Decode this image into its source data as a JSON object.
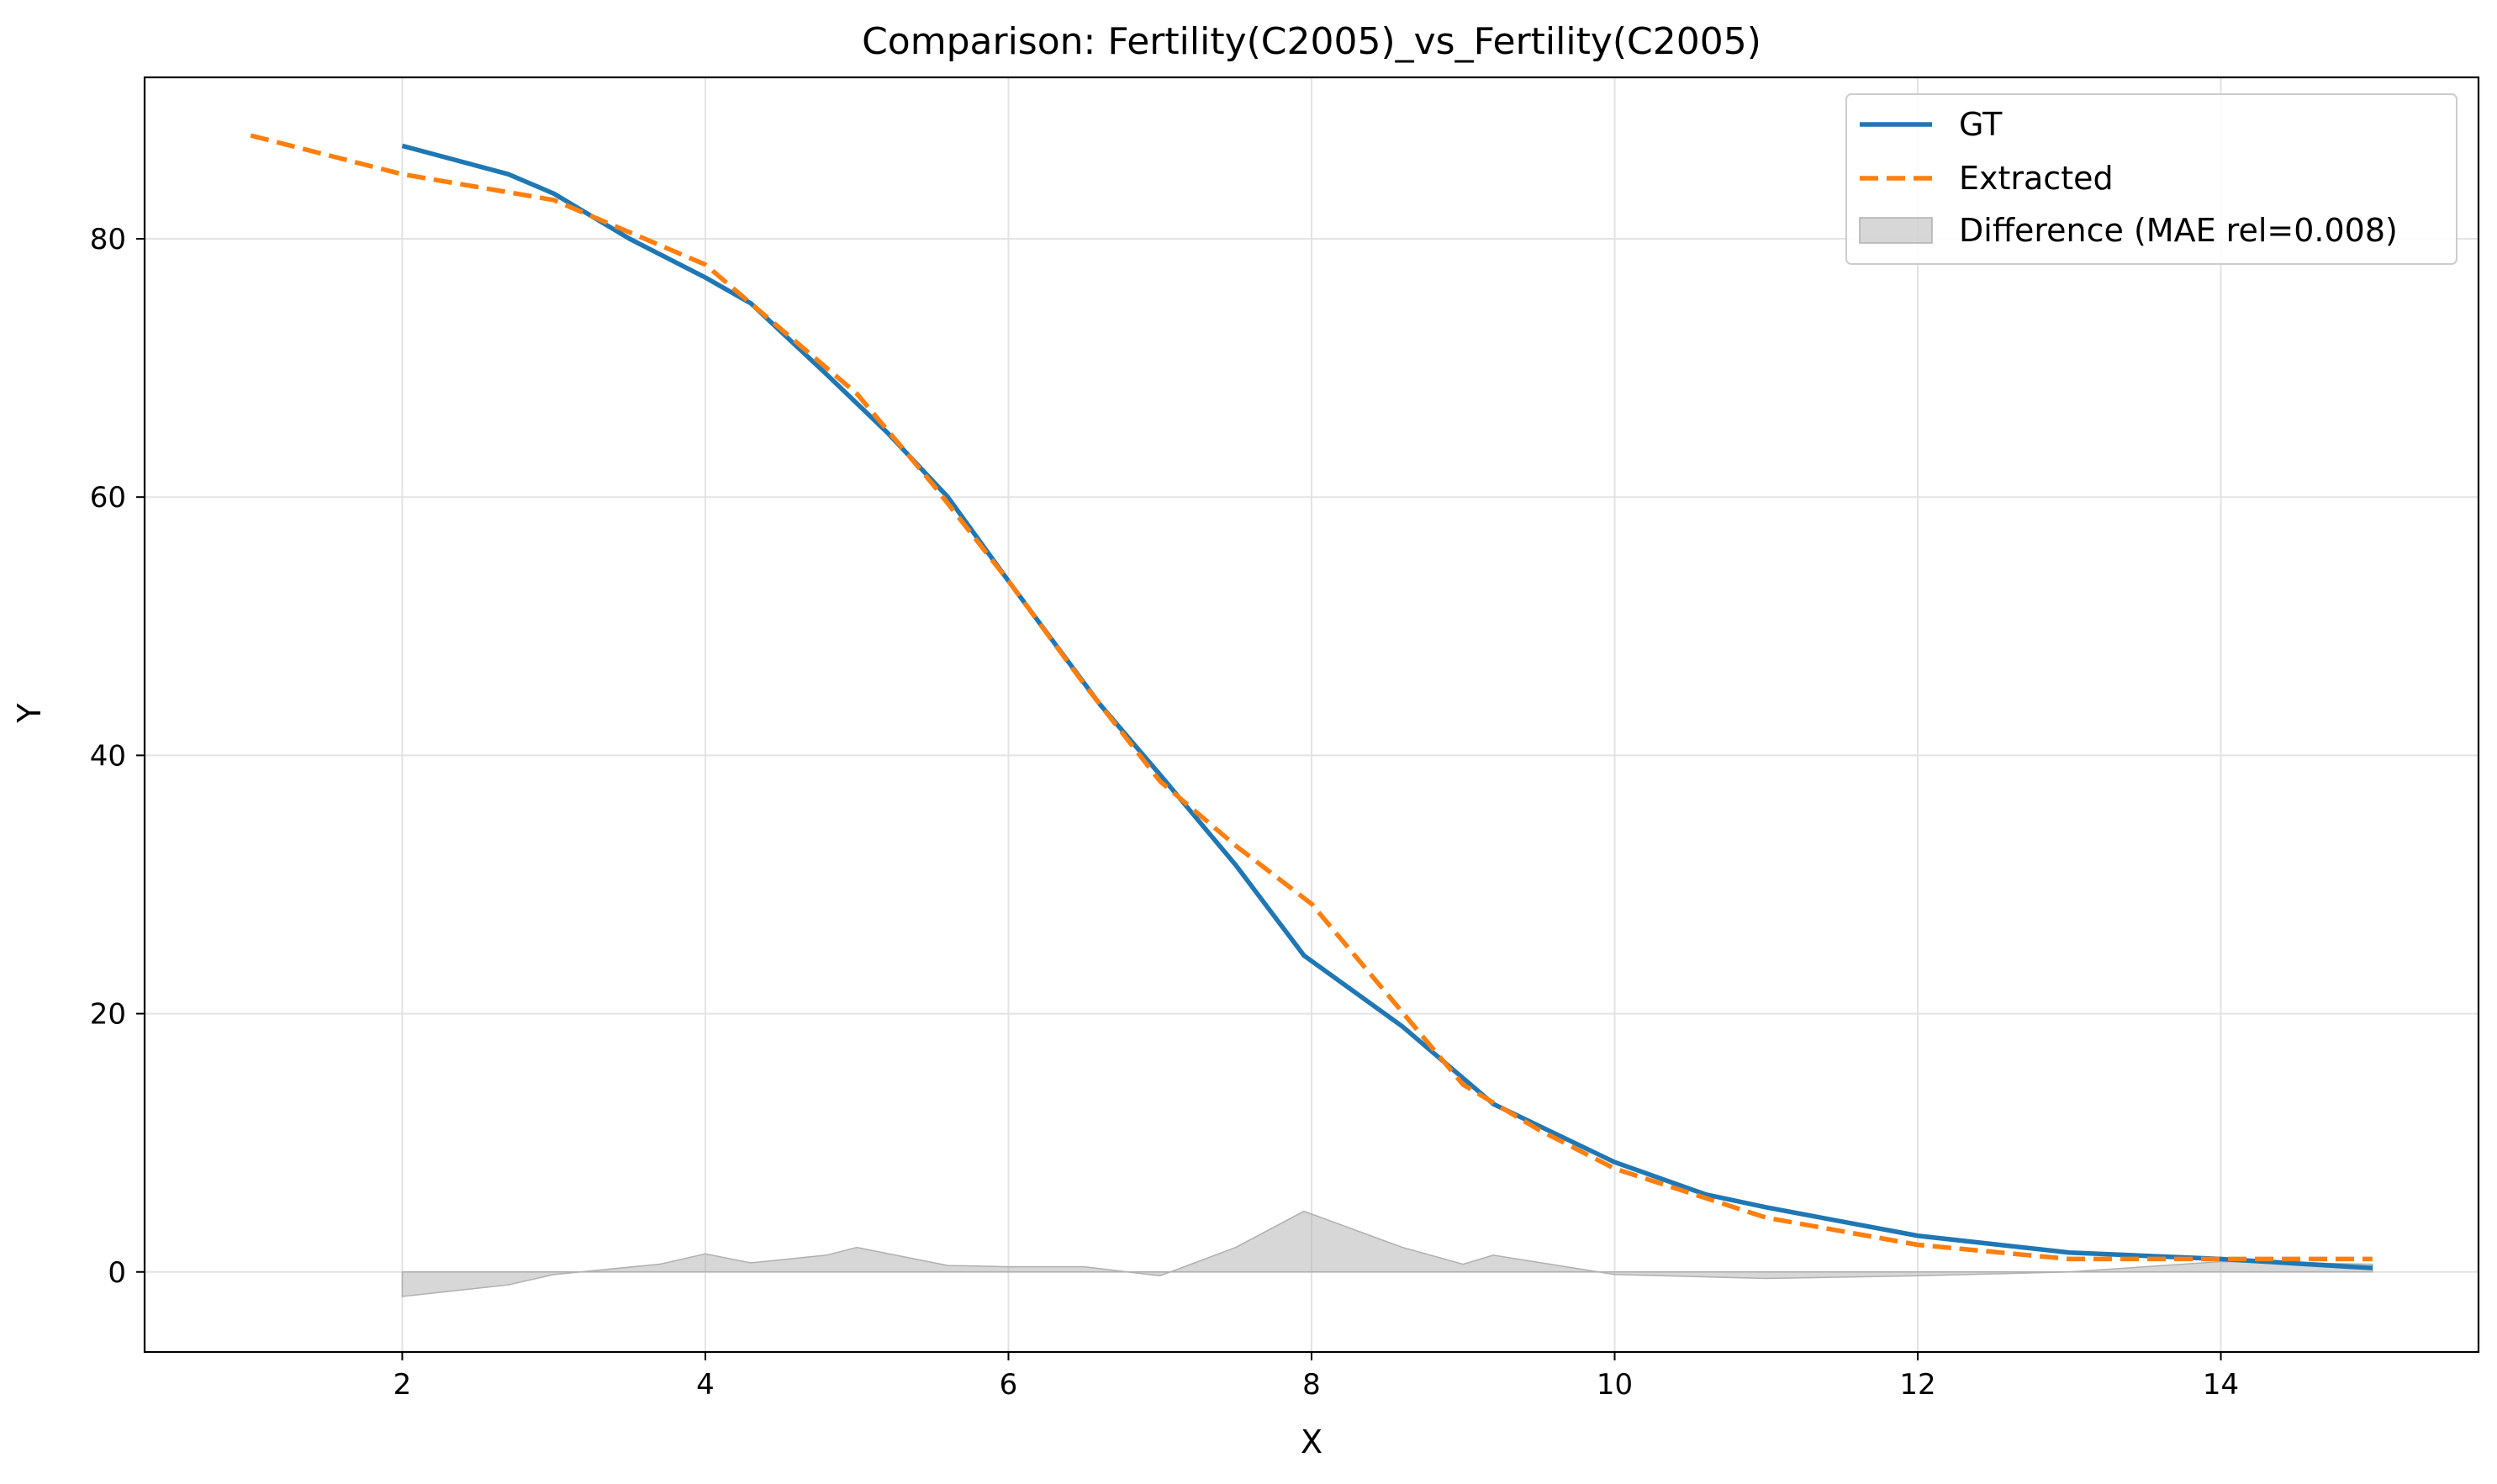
{
  "chart_data": {
    "type": "line",
    "title": "Comparison: Fertility(C2005)_vs_Fertility(C2005)",
    "xlabel": "X",
    "ylabel": "Y",
    "xlim": [
      0.3,
      15.7
    ],
    "ylim": [
      -6.2,
      92.5
    ],
    "xticks": [
      2,
      4,
      6,
      8,
      10,
      12,
      14
    ],
    "yticks": [
      0,
      20,
      40,
      60,
      80
    ],
    "grid": true,
    "legend_position": "top-right",
    "series": [
      {
        "name": "GT",
        "color": "#1f77b4",
        "style": "solid",
        "x": [
          2.0,
          2.7,
          3.0,
          3.5,
          4.0,
          4.3,
          4.8,
          5.2,
          5.6,
          6.0,
          6.6,
          7.0,
          7.5,
          7.95,
          8.6,
          9.2,
          10.0,
          10.6,
          11.0,
          12.0,
          13.0,
          14.0,
          15.0
        ],
        "y": [
          87.2,
          85.0,
          83.5,
          80.0,
          77.0,
          75.0,
          69.5,
          65.0,
          60.0,
          53.5,
          44.0,
          38.5,
          31.5,
          24.5,
          19.0,
          13.0,
          8.5,
          6.0,
          5.0,
          2.8,
          1.5,
          1.0,
          0.3
        ]
      },
      {
        "name": "Extracted",
        "color": "#ff7f0e",
        "style": "dashed",
        "x": [
          1.0,
          2.0,
          3.0,
          3.5,
          4.0,
          4.5,
          5.0,
          5.5,
          6.0,
          6.5,
          7.0,
          7.5,
          8.0,
          8.5,
          9.0,
          9.5,
          10.0,
          11.0,
          12.0,
          13.0,
          14.0,
          15.0
        ],
        "y": [
          88.0,
          85.0,
          83.0,
          80.5,
          78.0,
          73.0,
          68.0,
          61.0,
          53.5,
          45.5,
          38.0,
          33.0,
          28.5,
          21.5,
          14.5,
          11.0,
          8.0,
          4.2,
          2.1,
          1.0,
          1.0,
          1.0
        ]
      }
    ],
    "difference": {
      "name": "Difference (MAE rel=0.008)",
      "color": "#b0b0b0",
      "x": [
        2.0,
        2.7,
        3.0,
        3.7,
        4.0,
        4.3,
        4.8,
        5.0,
        5.6,
        6.0,
        6.5,
        7.0,
        7.5,
        7.95,
        8.6,
        9.0,
        9.2,
        10.0,
        11.0,
        12.0,
        13.0,
        14.0,
        15.0
      ],
      "y": [
        -1.9,
        -1.0,
        -0.2,
        0.6,
        1.4,
        0.7,
        1.3,
        1.9,
        0.5,
        0.4,
        0.4,
        -0.3,
        1.9,
        4.7,
        1.9,
        0.6,
        1.3,
        -0.2,
        -0.5,
        -0.3,
        0.0,
        0.8,
        0.6
      ]
    }
  }
}
